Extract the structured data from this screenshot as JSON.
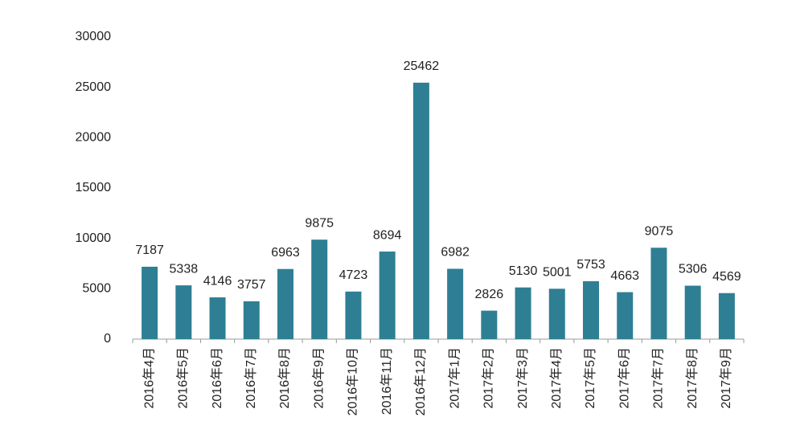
{
  "chart_data": {
    "type": "bar",
    "categories": [
      "2016年4月",
      "2016年5月",
      "2016年6月",
      "2016年7月",
      "2016年8月",
      "2016年9月",
      "2016年10月",
      "2016年11月",
      "2016年12月",
      "2017年1月",
      "2017年2月",
      "2017年3月",
      "2017年4月",
      "2017年5月",
      "2017年6月",
      "2017年7月",
      "2017年8月",
      "2017年9月"
    ],
    "values": [
      7187,
      5338,
      4146,
      3757,
      6963,
      9875,
      4723,
      8694,
      25462,
      6982,
      2826,
      5130,
      5001,
      5753,
      4663,
      9075,
      5306,
      4569
    ],
    "color": "#2e7f94",
    "ylim": [
      0,
      30000
    ],
    "yticks": [
      0,
      5000,
      10000,
      15000,
      20000,
      25000,
      30000
    ],
    "grid": false
  }
}
